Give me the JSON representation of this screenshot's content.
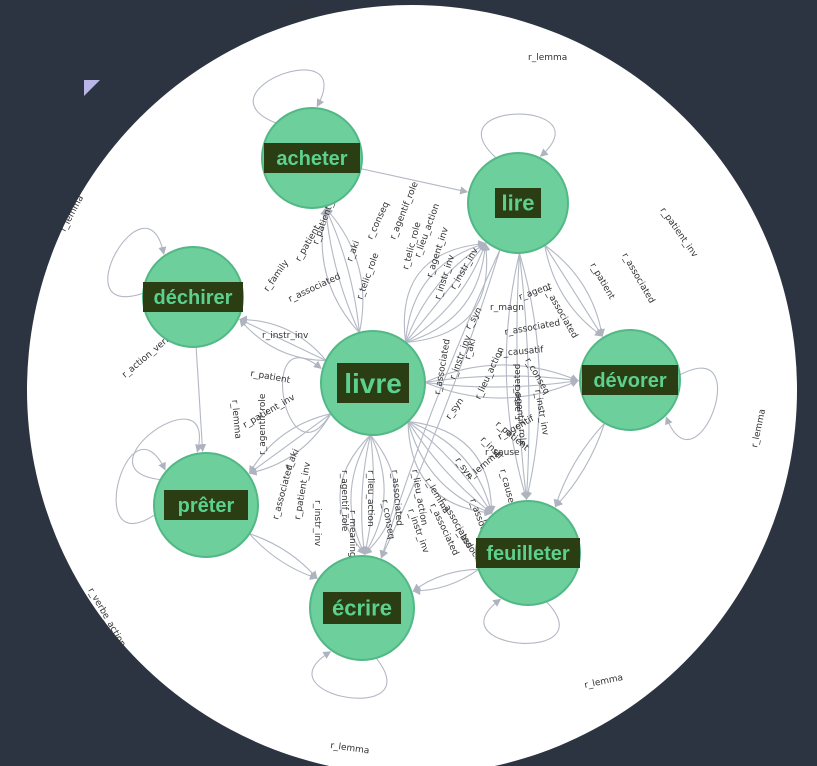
{
  "graph": {
    "nodes": [
      {
        "id": "acheter",
        "label": "acheter"
      },
      {
        "id": "lire",
        "label": "lire"
      },
      {
        "id": "dechirer",
        "label": "déchirer"
      },
      {
        "id": "livre",
        "label": "livre"
      },
      {
        "id": "devorer",
        "label": "dévorer"
      },
      {
        "id": "preter",
        "label": "prêter"
      },
      {
        "id": "feuilleter",
        "label": "feuilleter"
      },
      {
        "id": "ecrire",
        "label": "écrire"
      }
    ],
    "self_loops": [
      {
        "node": "acheter",
        "label": "r_lemma"
      },
      {
        "node": "lire",
        "label": "r_lemma"
      },
      {
        "node": "dechirer",
        "label": "r_lemma"
      },
      {
        "node": "devorer",
        "label": "r_lemma"
      },
      {
        "node": "preter",
        "label": "r_action_verbe"
      },
      {
        "node": "preter",
        "label": "r_verbe_action"
      },
      {
        "node": "feuilleter",
        "label": "r_lemma"
      },
      {
        "node": "ecrire",
        "label": "r_lemma"
      },
      {
        "node": "livre",
        "label": "r_lemma"
      }
    ],
    "edge_labels": [
      "r_patient_inv",
      "r_patient",
      "r_aki",
      "r_conseq",
      "r_telic_role",
      "r_agentif_role",
      "r_telic_role",
      "r_lieu_action",
      "r_agent_inv",
      "r_instr_inv",
      "r_instr_inv",
      "r_family",
      "r_associated",
      "r_instr_inv",
      "r_patient",
      "r_patient_inv",
      "r_agentif_role",
      "r_aki",
      "r_instr_inv",
      "r_agentif_role",
      "r_lieu_action",
      "r_associated",
      "r_lieu_action",
      "r_syn",
      "r_instr",
      "r_patient",
      "r_cause",
      "r_associated",
      "r_associated",
      "r_syn",
      "r_magn",
      "r_associated",
      "r_agent",
      "r_associated",
      "r_patient",
      "r_associated",
      "r_patient_inv",
      "r_causatif",
      "r_conseq",
      "r_instr_inv",
      "r_agentif_role",
      "r_associated",
      "r_cause",
      "r_instr_inv",
      "r_aki",
      "r_associated",
      "r_syn",
      "r_lieu_action",
      "r_agentif",
      "r_conseq",
      "r_instr_inv",
      "r_associated",
      "r_meaning",
      "r_patient_inv",
      "r_associated",
      "r_associated",
      "r_lemma",
      "r_lemma",
      "r_has_causatif"
    ]
  },
  "colors": {
    "background": "#2b3440",
    "circle_background": "#ffffff",
    "node_fill": "#6ccf9c",
    "node_stroke": "#52b886",
    "label_box": "#2a3d13",
    "label_text": "#5cd08e",
    "edge": "#b3b8c4",
    "edge_label": "#333333"
  },
  "icons": {
    "corner": "collapse-triangle-icon"
  }
}
